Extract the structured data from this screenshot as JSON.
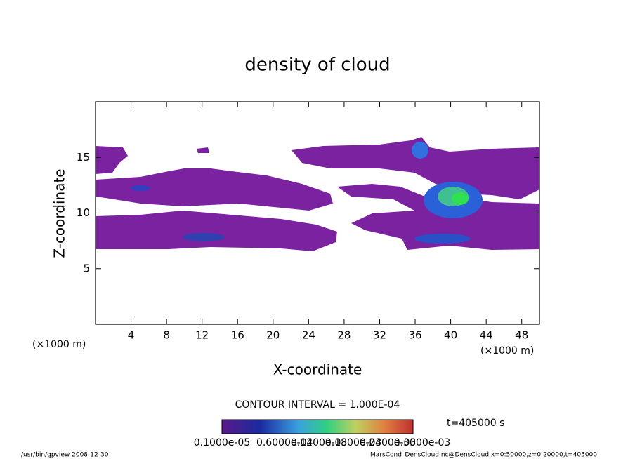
{
  "chart_data": {
    "type": "contour",
    "title": "density of cloud",
    "x_label": "X-coordinate",
    "y_label": "Z-coordinate",
    "x_unit_labels": [
      "(×1000 m)",
      "(×1000 m)"
    ],
    "xlim": [
      0,
      50
    ],
    "ylim": [
      0,
      20
    ],
    "xticks": [
      4,
      8,
      12,
      16,
      20,
      24,
      28,
      32,
      36,
      40,
      44,
      48
    ],
    "yticks": [
      5,
      10,
      15
    ],
    "contour_interval": "CONTOUR INTERVAL = 1.000E-04",
    "time_label": "t=405000 s",
    "colorbar_labels": [
      "0.1000e-05",
      "0.6000e-04",
      "0.1200e-03",
      "0.1800e-03",
      "0.2400e-03",
      "0.3000e-03"
    ],
    "footer_left": "/usr/bin/gpview   2008-12-30",
    "footer_right": "MarsCond_DensCloud.nc@DensCloud,x=0:50000,z=0:20000,t=405000"
  }
}
